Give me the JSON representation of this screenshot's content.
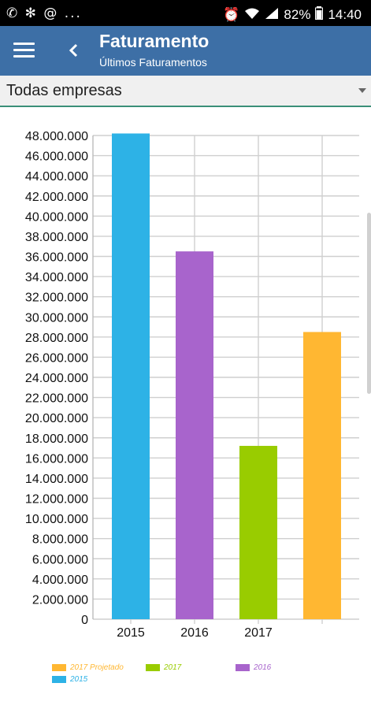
{
  "status_bar": {
    "left_icons": [
      "whatsapp-icon",
      "settings-icon",
      "at-icon"
    ],
    "left_more": "...",
    "battery": "82%",
    "time": "14:40"
  },
  "app_bar": {
    "title": "Faturamento",
    "subtitle": "Últimos Faturamentos"
  },
  "filter": {
    "selected": "Todas empresas"
  },
  "chart_data": {
    "type": "bar",
    "categories": [
      "2015",
      "2016",
      "2017",
      ""
    ],
    "values": [
      48200000,
      36500000,
      17200000,
      28500000
    ],
    "colors": [
      "#2db2e6",
      "#a864cc",
      "#99cc00",
      "#ffb732"
    ],
    "ylim": [
      0,
      48000000
    ],
    "yticks": [
      "0",
      "2.000.000",
      "4.000.000",
      "6.000.000",
      "8.000.000",
      "10.000.000",
      "12.000.000",
      "14.000.000",
      "16.000.000",
      "18.000.000",
      "20.000.000",
      "22.000.000",
      "24.000.000",
      "26.000.000",
      "28.000.000",
      "30.000.000",
      "32.000.000",
      "34.000.000",
      "36.000.000",
      "38.000.000",
      "40.000.000",
      "42.000.000",
      "44.000.000",
      "46.000.000",
      "48.000.000"
    ],
    "grid": true,
    "legend_position": "bottom",
    "legend": [
      {
        "name": "2017 Projetado",
        "color": "#ffb732"
      },
      {
        "name": "2017",
        "color": "#99cc00"
      },
      {
        "name": "2016",
        "color": "#a864cc"
      },
      {
        "name": "2015",
        "color": "#2db2e6"
      }
    ]
  }
}
